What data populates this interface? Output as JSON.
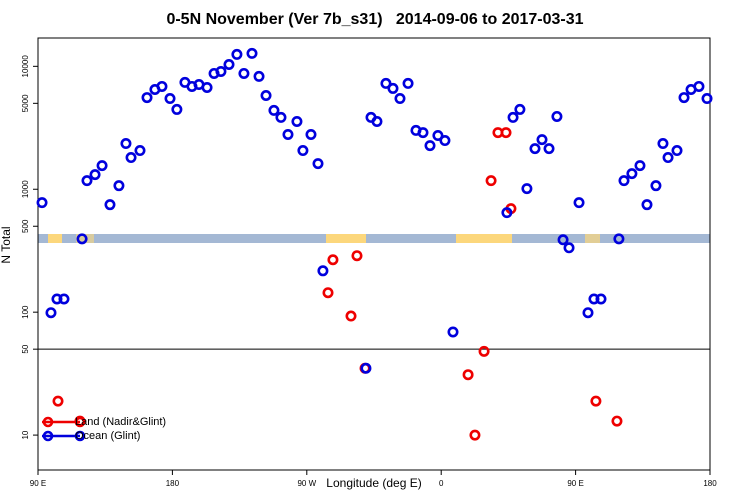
{
  "chart_data": {
    "type": "scatter",
    "title": "0-5N November (Ver 7b_s31)   2014-09-06 to 2017-03-31",
    "xlabel": "Longitude (deg E)",
    "ylabel": "N Total",
    "xlim": [
      90,
      540
    ],
    "ylim": [
      5.2,
      17000
    ],
    "log_y": true,
    "xticks": [
      {
        "value": 90,
        "label": "90 E"
      },
      180,
      {
        "value": 270,
        "label": "90 W"
      },
      {
        "value": 360,
        "label": "0"
      },
      {
        "value": 450,
        "label": "90 E"
      },
      {
        "value": 540,
        "label": "180"
      }
    ],
    "yticks": [
      10,
      50,
      100,
      500,
      1000,
      5000,
      10000
    ],
    "reference_line": 50,
    "legend": "lower left",
    "series": [
      {
        "name": "Land (Nadir&Glint)",
        "color": "#ee0000",
        "x": [
          103.4,
          118.1,
          284.2,
          287.5,
          299.6,
          303.6,
          309.0,
          378.0,
          382.6,
          388.7,
          393.4,
          398.0,
          403.4,
          406.7,
          463.6,
          477.7
        ],
        "values": [
          18.9,
          13,
          144,
          267,
          93,
          288,
          35,
          31,
          10,
          48,
          1175,
          2890,
          2890,
          695,
          18.9,
          13
        ]
      },
      {
        "name": "Ocean (Glint)",
        "color": "#0000dd",
        "x": [
          92.7,
          98.7,
          102.7,
          107.4,
          119.5,
          122.8,
          128.2,
          132.9,
          138.2,
          144.2,
          148.9,
          152.3,
          158.3,
          163.0,
          168.3,
          173.0,
          178.4,
          183.0,
          188.4,
          193.1,
          197.8,
          203.2,
          207.9,
          212.5,
          217.9,
          223.2,
          227.9,
          233.3,
          238.0,
          242.7,
          248.0,
          252.7,
          257.4,
          263.4,
          267.4,
          272.8,
          277.5,
          280.8,
          309.6,
          313.0,
          317.0,
          323.0,
          327.7,
          332.4,
          337.8,
          343.1,
          347.8,
          352.5,
          357.8,
          362.5,
          367.9,
          404.0,
          408.1,
          412.7,
          417.4,
          422.8,
          427.5,
          432.2,
          437.5,
          441.6,
          445.6,
          452.3,
          458.3,
          462.3,
          467.0,
          479.0,
          482.4,
          487.7,
          493.1,
          497.8,
          503.8,
          508.5,
          511.9,
          517.9,
          522.6,
          527.3,
          532.6,
          538.0
        ],
        "values": [
          778,
          99,
          128,
          128,
          395,
          1175,
          1315,
          1557,
          749,
          1069,
          2355,
          1811,
          2065,
          5570,
          6480,
          6860,
          5470,
          4460,
          7400,
          6860,
          7110,
          6730,
          8750,
          9080,
          10350,
          12500,
          8750,
          12740,
          8280,
          5790,
          4380,
          3840,
          2790,
          3560,
          2065,
          2790,
          1617,
          217,
          35,
          3840,
          3560,
          7260,
          6610,
          5470,
          7260,
          3010,
          2890,
          2265,
          2735,
          2490,
          69,
          645,
          3840,
          4460,
          1012,
          2140,
          2535,
          2140,
          3910,
          388,
          334,
          778,
          99,
          128,
          128,
          395,
          1175,
          1340,
          1557,
          749,
          1069,
          2355,
          1811,
          2065,
          5570,
          6480,
          6860,
          5470
        ]
      }
    ]
  }
}
